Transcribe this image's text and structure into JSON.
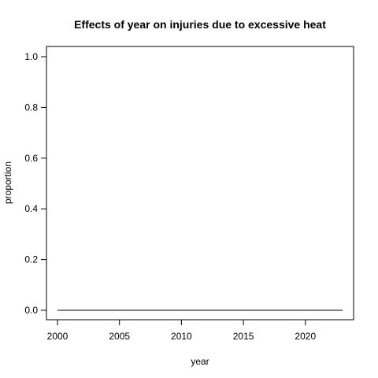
{
  "chart_data": {
    "type": "line",
    "title": "Effects of year on injuries due to excessive heat",
    "xlabel": "year",
    "ylabel": "proportion",
    "xlim": [
      2000,
      2023
    ],
    "ylim": [
      0.0,
      1.0
    ],
    "x_ticks": [
      2000,
      2005,
      2010,
      2015,
      2020
    ],
    "x_tick_labels": [
      "2000",
      "2005",
      "2010",
      "2015",
      "2020"
    ],
    "y_ticks": [
      0.0,
      0.2,
      0.4,
      0.6,
      0.8,
      1.0
    ],
    "y_tick_labels": [
      "0.0",
      "0.2",
      "0.4",
      "0.6",
      "0.8",
      "1.0"
    ],
    "grid": false,
    "series": [
      {
        "x": [
          2000,
          2023
        ],
        "y": [
          0.0,
          0.0
        ]
      }
    ],
    "colors": {
      "line": "#000000",
      "background": "#ffffff"
    }
  }
}
